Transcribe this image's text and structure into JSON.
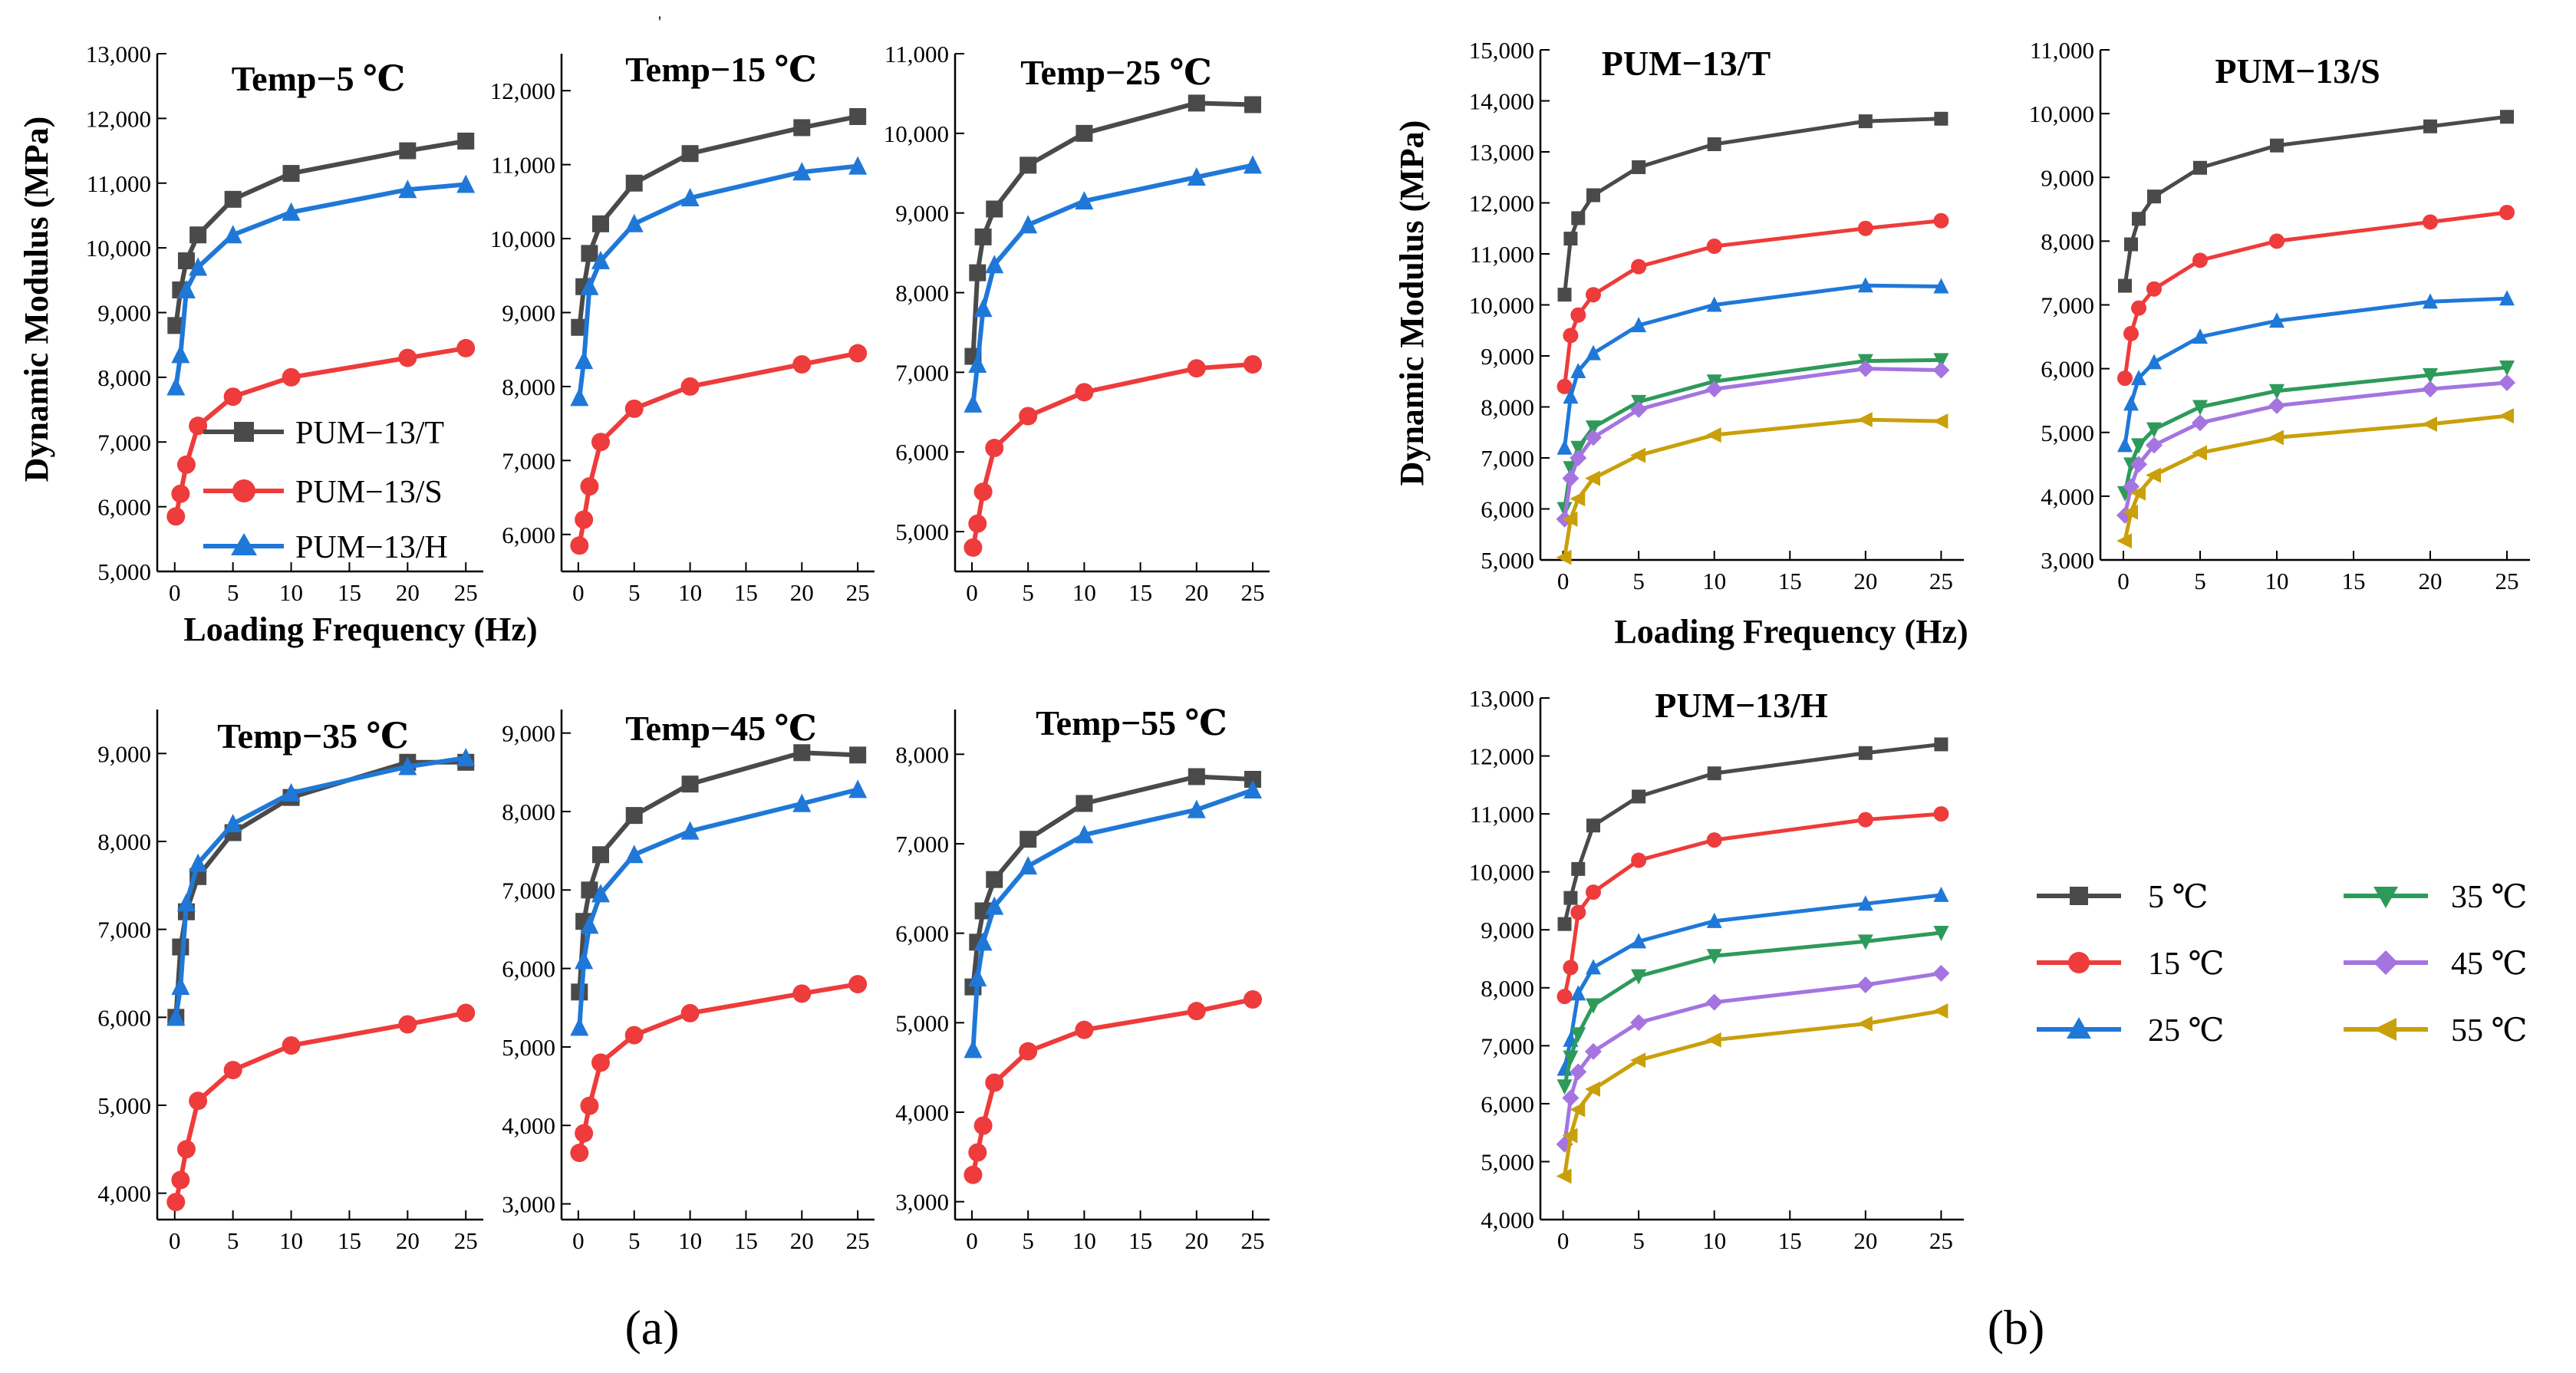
{
  "chart_data": [
    {
      "id": "a1",
      "type": "line",
      "title": "Temp−5 ℃",
      "xlabel": "",
      "ylabel": "",
      "x": [
        0.1,
        0.5,
        1,
        2,
        5,
        10,
        20,
        25
      ],
      "xticks": [
        0,
        5,
        10,
        15,
        20,
        25
      ],
      "xticklabels": [
        "0",
        "5",
        "10",
        "15",
        "20",
        "25"
      ],
      "ylim": [
        5000,
        13000
      ],
      "yticks": [
        5000,
        6000,
        7000,
        8000,
        9000,
        10000,
        11000,
        12000,
        13000
      ],
      "yticklabels": [
        "5,000",
        "6,000",
        "7,000",
        "8,000",
        "9,000",
        "10,000",
        "11,000",
        "12,000",
        "13,000"
      ],
      "series": [
        {
          "name": "PUM−13/T",
          "values": [
            8800,
            9350,
            9800,
            10200,
            10750,
            11150,
            11500,
            11650
          ]
        },
        {
          "name": "PUM−13/S",
          "values": [
            5850,
            6200,
            6650,
            7250,
            7700,
            8000,
            8300,
            8450
          ]
        },
        {
          "name": "PUM−13/H",
          "values": [
            7850,
            8350,
            9350,
            9700,
            10200,
            10550,
            10900,
            10980
          ]
        }
      ]
    },
    {
      "id": "a2",
      "type": "line",
      "title": "Temp−15 ℃",
      "xlabel": "",
      "ylabel": "",
      "x": [
        0.1,
        0.5,
        1,
        2,
        5,
        10,
        20,
        25
      ],
      "xticks": [
        0,
        5,
        10,
        15,
        20,
        25
      ],
      "xticklabels": [
        "0",
        "5",
        "10",
        "15",
        "20",
        "25"
      ],
      "ylim": [
        5500,
        12500
      ],
      "yticks": [
        6000,
        7000,
        8000,
        9000,
        10000,
        11000,
        12000
      ],
      "yticklabels": [
        "6,000",
        "7,000",
        "8,000",
        "9,000",
        "10,000",
        "11,000",
        "12,000"
      ],
      "series": [
        {
          "name": "PUM−13/T",
          "values": [
            8800,
            9350,
            9800,
            10200,
            10750,
            11150,
            11500,
            11650
          ]
        },
        {
          "name": "PUM−13/S",
          "values": [
            5850,
            6200,
            6650,
            7250,
            7700,
            8000,
            8300,
            8450
          ]
        },
        {
          "name": "PUM−13/H",
          "values": [
            7850,
            8350,
            9350,
            9700,
            10200,
            10550,
            10900,
            10980
          ]
        }
      ]
    },
    {
      "id": "a3",
      "type": "line",
      "title": "Temp−25 ℃",
      "xlabel": "",
      "ylabel": "",
      "x": [
        0.1,
        0.5,
        1,
        2,
        5,
        10,
        20,
        25
      ],
      "xticks": [
        0,
        5,
        10,
        15,
        20,
        25
      ],
      "xticklabels": [
        "0",
        "5",
        "10",
        "15",
        "20",
        "25"
      ],
      "ylim": [
        4500,
        11000
      ],
      "yticks": [
        5000,
        6000,
        7000,
        8000,
        9000,
        10000,
        11000
      ],
      "yticklabels": [
        "5,000",
        "6,000",
        "7,000",
        "8,000",
        "9,000",
        "10,000",
        "11,000"
      ],
      "series": [
        {
          "name": "PUM−13/T",
          "values": [
            7200,
            8250,
            8700,
            9050,
            9600,
            10000,
            10380,
            10360
          ]
        },
        {
          "name": "PUM−13/S",
          "values": [
            4800,
            5100,
            5500,
            6050,
            6450,
            6750,
            7050,
            7100
          ]
        },
        {
          "name": "PUM−13/H",
          "values": [
            6600,
            7100,
            7800,
            8350,
            8850,
            9150,
            9450,
            9600
          ]
        }
      ]
    },
    {
      "id": "a4",
      "type": "line",
      "title": "Temp−35 ℃",
      "xlabel": "",
      "ylabel": "",
      "x": [
        0.1,
        0.5,
        1,
        2,
        5,
        10,
        20,
        25
      ],
      "xticks": [
        0,
        5,
        10,
        15,
        20,
        25
      ],
      "xticklabels": [
        "0",
        "5",
        "10",
        "15",
        "20",
        "25"
      ],
      "ylim": [
        3700,
        9500
      ],
      "yticks": [
        4000,
        5000,
        6000,
        7000,
        8000,
        9000
      ],
      "yticklabels": [
        "4,000",
        "5,000",
        "6,000",
        "7,000",
        "8,000",
        "9,000"
      ],
      "series": [
        {
          "name": "PUM−13/T",
          "values": [
            6000,
            6800,
            7200,
            7600,
            8100,
            8500,
            8900,
            8900
          ]
        },
        {
          "name": "PUM−13/S",
          "values": [
            3900,
            4150,
            4500,
            5050,
            5400,
            5680,
            5920,
            6050
          ]
        },
        {
          "name": "PUM−13/H",
          "values": [
            6000,
            6350,
            7300,
            7750,
            8200,
            8550,
            8850,
            8950
          ]
        }
      ]
    },
    {
      "id": "a5",
      "type": "line",
      "title": "Temp−45 ℃",
      "xlabel": "",
      "ylabel": "",
      "x": [
        0.1,
        0.5,
        1,
        2,
        5,
        10,
        20,
        25
      ],
      "xticks": [
        0,
        5,
        10,
        15,
        20,
        25
      ],
      "xticklabels": [
        "0",
        "5",
        "10",
        "15",
        "20",
        "25"
      ],
      "ylim": [
        2800,
        9300
      ],
      "yticks": [
        3000,
        4000,
        5000,
        6000,
        7000,
        8000,
        9000
      ],
      "yticklabels": [
        "3,000",
        "4,000",
        "5,000",
        "6,000",
        "7,000",
        "8,000",
        "9,000"
      ],
      "series": [
        {
          "name": "PUM−13/T",
          "values": [
            5700,
            6600,
            7000,
            7450,
            7950,
            8350,
            8750,
            8720
          ]
        },
        {
          "name": "PUM−13/S",
          "values": [
            3650,
            3900,
            4250,
            4800,
            5150,
            5430,
            5680,
            5800
          ]
        },
        {
          "name": "PUM−13/H",
          "values": [
            5250,
            6100,
            6550,
            6950,
            7450,
            7750,
            8100,
            8280
          ]
        }
      ]
    },
    {
      "id": "a6",
      "type": "line",
      "title": "Temp−55 ℃",
      "xlabel": "",
      "ylabel": "",
      "x": [
        0.1,
        0.5,
        1,
        2,
        5,
        10,
        20,
        25
      ],
      "xticks": [
        0,
        5,
        10,
        15,
        20,
        25
      ],
      "xticklabels": [
        "0",
        "5",
        "10",
        "15",
        "20",
        "25"
      ],
      "ylim": [
        2800,
        8500
      ],
      "yticks": [
        3000,
        4000,
        5000,
        6000,
        7000,
        8000
      ],
      "yticklabels": [
        "3,000",
        "4,000",
        "5,000",
        "6,000",
        "7,000",
        "8,000"
      ],
      "series": [
        {
          "name": "PUM−13/T",
          "values": [
            5400,
            5900,
            6250,
            6600,
            7050,
            7450,
            7750,
            7720
          ]
        },
        {
          "name": "PUM−13/S",
          "values": [
            3300,
            3550,
            3850,
            4330,
            4680,
            4920,
            5130,
            5260
          ]
        },
        {
          "name": "PUM−13/H",
          "values": [
            4700,
            5500,
            5900,
            6300,
            6750,
            7100,
            7380,
            7600
          ]
        }
      ]
    },
    {
      "id": "b1",
      "type": "line",
      "title": "PUM−13/T",
      "xlabel": "",
      "ylabel": "",
      "x": [
        0.1,
        0.5,
        1,
        2,
        5,
        10,
        20,
        25
      ],
      "xticks": [
        0,
        5,
        10,
        15,
        20,
        25
      ],
      "xticklabels": [
        "0",
        "5",
        "10",
        "15",
        "20",
        "25"
      ],
      "ylim": [
        5000,
        15000
      ],
      "yticks": [
        5000,
        6000,
        7000,
        8000,
        9000,
        10000,
        11000,
        12000,
        13000,
        14000,
        15000
      ],
      "yticklabels": [
        "5,000",
        "6,000",
        "7,000",
        "8,000",
        "9,000",
        "10,000",
        "11,000",
        "12,000",
        "13,000",
        "14,000",
        "15,000"
      ],
      "series": [
        {
          "name": "5 ℃",
          "values": [
            10200,
            11300,
            11700,
            12150,
            12700,
            13150,
            13600,
            13650
          ]
        },
        {
          "name": "15 ℃",
          "values": [
            8400,
            9400,
            9800,
            10200,
            10750,
            11150,
            11500,
            11650
          ]
        },
        {
          "name": "25 ℃",
          "values": [
            7200,
            8200,
            8700,
            9050,
            9600,
            10000,
            10380,
            10360
          ]
        },
        {
          "name": "35 ℃",
          "values": [
            6000,
            6800,
            7200,
            7600,
            8100,
            8500,
            8900,
            8920
          ]
        },
        {
          "name": "45 ℃",
          "values": [
            5800,
            6600,
            7000,
            7400,
            7950,
            8350,
            8750,
            8720
          ]
        },
        {
          "name": "55 ℃",
          "values": [
            5050,
            5800,
            6200,
            6600,
            7050,
            7450,
            7750,
            7720
          ]
        }
      ]
    },
    {
      "id": "b2",
      "type": "line",
      "title": "PUM−13/S",
      "xlabel": "",
      "ylabel": "",
      "x": [
        0.1,
        0.5,
        1,
        2,
        5,
        10,
        20,
        25
      ],
      "xticks": [
        0,
        5,
        10,
        15,
        20,
        25
      ],
      "xticklabels": [
        "0",
        "5",
        "10",
        "15",
        "20",
        "25"
      ],
      "ylim": [
        3000,
        11000
      ],
      "yticks": [
        3000,
        4000,
        5000,
        6000,
        7000,
        8000,
        9000,
        10000,
        11000
      ],
      "yticklabels": [
        "3,000",
        "4,000",
        "5,000",
        "6,000",
        "7,000",
        "8,000",
        "9,000",
        "10,000",
        "11,000"
      ],
      "series": [
        {
          "name": "5 ℃",
          "values": [
            7300,
            7950,
            8350,
            8700,
            9150,
            9500,
            9800,
            9950
          ]
        },
        {
          "name": "15 ℃",
          "values": [
            5850,
            6550,
            6950,
            7250,
            7700,
            8000,
            8300,
            8450
          ]
        },
        {
          "name": "25 ℃",
          "values": [
            4800,
            5450,
            5850,
            6100,
            6500,
            6750,
            7050,
            7100
          ]
        },
        {
          "name": "35 ℃",
          "values": [
            4050,
            4500,
            4800,
            5050,
            5400,
            5650,
            5900,
            6020
          ]
        },
        {
          "name": "45 ℃",
          "values": [
            3700,
            4150,
            4500,
            4800,
            5150,
            5420,
            5680,
            5780
          ]
        },
        {
          "name": "55 ℃",
          "values": [
            3300,
            3750,
            4050,
            4330,
            4680,
            4920,
            5130,
            5260
          ]
        }
      ]
    },
    {
      "id": "b3",
      "type": "line",
      "title": "PUM−13/H",
      "xlabel": "",
      "ylabel": "",
      "x": [
        0.1,
        0.5,
        1,
        2,
        5,
        10,
        20,
        25
      ],
      "xticks": [
        0,
        5,
        10,
        15,
        20,
        25
      ],
      "xticklabels": [
        "0",
        "5",
        "10",
        "15",
        "20",
        "25"
      ],
      "ylim": [
        4000,
        13000
      ],
      "yticks": [
        4000,
        5000,
        6000,
        7000,
        8000,
        9000,
        10000,
        11000,
        12000,
        13000
      ],
      "yticklabels": [
        "4,000",
        "5,000",
        "6,000",
        "7,000",
        "8,000",
        "9,000",
        "10,000",
        "11,000",
        "12,000",
        "13,000"
      ],
      "series": [
        {
          "name": "5 ℃",
          "values": [
            9100,
            9550,
            10050,
            10800,
            11300,
            11700,
            12050,
            12200
          ]
        },
        {
          "name": "15 ℃",
          "values": [
            7850,
            8350,
            9300,
            9650,
            10200,
            10550,
            10900,
            11000
          ]
        },
        {
          "name": "25 ℃",
          "values": [
            6600,
            7100,
            7900,
            8350,
            8800,
            9150,
            9450,
            9600
          ]
        },
        {
          "name": "35 ℃",
          "values": [
            6300,
            6800,
            7200,
            7700,
            8200,
            8550,
            8800,
            8950
          ]
        },
        {
          "name": "45 ℃",
          "values": [
            5300,
            6100,
            6550,
            6900,
            7400,
            7750,
            8050,
            8250
          ]
        },
        {
          "name": "55 ℃",
          "values": [
            4750,
            5450,
            5900,
            6250,
            6750,
            7100,
            7380,
            7600
          ]
        }
      ]
    }
  ],
  "figure": {
    "ylabel": "Dynamic Modulus (MPa)",
    "xlabel": "Loading Frequency (Hz)",
    "panel_a_label": "(a)",
    "panel_b_label": "(b)",
    "stray_mark": "'"
  },
  "legend_a": {
    "items": [
      {
        "label": "PUM−13/T",
        "color": "#4a4a4a",
        "marker": "square"
      },
      {
        "label": "PUM−13/S",
        "color": "#ee3b3b",
        "marker": "circle"
      },
      {
        "label": "PUM−13/H",
        "color": "#1f78d8",
        "marker": "triangle-up"
      }
    ]
  },
  "legend_b": {
    "items": [
      {
        "label": "5 ℃",
        "color": "#4a4a4a",
        "marker": "square"
      },
      {
        "label": "15 ℃",
        "color": "#ee3b3b",
        "marker": "circle"
      },
      {
        "label": "25 ℃",
        "color": "#1f78d8",
        "marker": "triangle-up"
      },
      {
        "label": "35 ℃",
        "color": "#2e9a5a",
        "marker": "triangle-down"
      },
      {
        "label": "45 ℃",
        "color": "#a574e0",
        "marker": "diamond"
      },
      {
        "label": "55 ℃",
        "color": "#c9a00a",
        "marker": "triangle-left"
      }
    ]
  }
}
